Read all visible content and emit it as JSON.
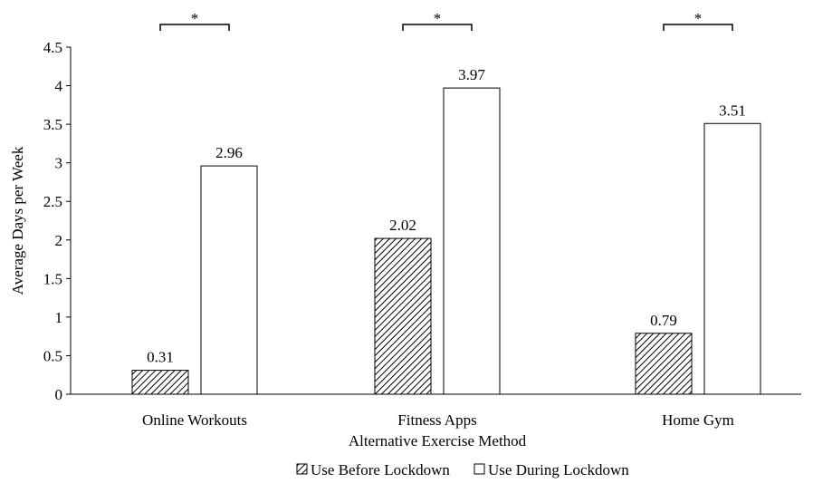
{
  "chart_data": {
    "type": "bar",
    "title": "",
    "xlabel": "Alternative Exercise Method",
    "ylabel": "Average Days per Week",
    "categories": [
      "Online Workouts",
      "Fitness Apps",
      "Home Gym"
    ],
    "series": [
      {
        "name": "Use Before Lockdown",
        "values": [
          0.31,
          2.02,
          0.79
        ],
        "pattern": "diagonal-hatch",
        "color": "#000000"
      },
      {
        "name": "Use During Lockdown",
        "values": [
          2.96,
          3.97,
          3.51
        ],
        "pattern": "solid",
        "color": "#ffffff"
      }
    ],
    "data_labels": [
      [
        "0.31",
        "2.02",
        "0.79"
      ],
      [
        "2.96",
        "3.97",
        "3.51"
      ]
    ],
    "ylim": [
      0,
      4.5
    ],
    "yticks": [
      "0",
      "0.5",
      "1",
      "1.5",
      "2",
      "2.5",
      "3",
      "3.5",
      "4",
      "4.5"
    ],
    "significance_marker": "*",
    "grid": false,
    "legend_position": "bottom-center"
  }
}
